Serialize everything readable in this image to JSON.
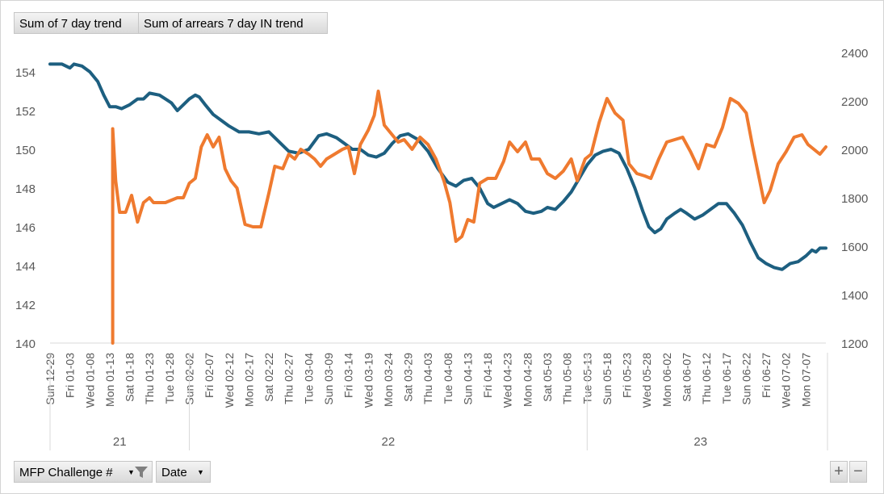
{
  "chart_data": {
    "type": "line",
    "title": "",
    "legend": [
      "Sum of 7 day trend",
      "Sum of arrears 7 day IN trend"
    ],
    "left_axis": {
      "min": 140,
      "max": 155,
      "ticks": [
        140,
        142,
        144,
        146,
        148,
        150,
        152,
        154
      ]
    },
    "right_axis": {
      "min": 1200,
      "max": 2400,
      "ticks": [
        1200,
        1400,
        1600,
        1800,
        2000,
        2200,
        2400
      ]
    },
    "x_labels": [
      "Sun 12-29",
      "Fri 01-03",
      "Wed 01-08",
      "Mon 01-13",
      "Sat 01-18",
      "Thu 01-23",
      "Tue 01-28",
      "Sun 02-02",
      "Fri 02-07",
      "Wed 02-12",
      "Mon 02-17",
      "Sat 02-22",
      "Thu 02-27",
      "Tue 03-04",
      "Sun 03-09",
      "Fri 03-14",
      "Wed 03-19",
      "Mon 03-24",
      "Sat 03-29",
      "Thu 04-03",
      "Tue 04-08",
      "Sun 04-13",
      "Fri 04-18",
      "Wed 04-23",
      "Mon 04-28",
      "Sat 05-03",
      "Thu 05-08",
      "Tue 05-13",
      "Sun 05-18",
      "Fri 05-23",
      "Wed 05-28",
      "Mon 06-02",
      "Sat 06-07",
      "Thu 06-12",
      "Tue 06-17",
      "Sun 06-22",
      "Fri 06-27",
      "Wed 07-02",
      "Mon 07-07"
    ],
    "groups": [
      {
        "label": "21",
        "start": 0,
        "end": 7
      },
      {
        "label": "22",
        "start": 7,
        "end": 27
      },
      {
        "label": "23",
        "start": 27,
        "end": 38.4
      }
    ],
    "series": [
      {
        "name": "Sum of 7 day trend",
        "axis": "left",
        "color": "#1d5f80",
        "points": [
          [
            0,
            154.4
          ],
          [
            0.6,
            154.4
          ],
          [
            0.8,
            154.3
          ],
          [
            1.0,
            154.2
          ],
          [
            1.2,
            154.4
          ],
          [
            1.6,
            154.3
          ],
          [
            2.0,
            154.0
          ],
          [
            2.4,
            153.5
          ],
          [
            2.7,
            152.8
          ],
          [
            3.0,
            152.2
          ],
          [
            3.3,
            152.2
          ],
          [
            3.6,
            152.1
          ],
          [
            4.0,
            152.3
          ],
          [
            4.4,
            152.6
          ],
          [
            4.7,
            152.6
          ],
          [
            5.0,
            152.9
          ],
          [
            5.5,
            152.8
          ],
          [
            5.8,
            152.6
          ],
          [
            6.1,
            152.4
          ],
          [
            6.4,
            152.0
          ],
          [
            6.7,
            152.3
          ],
          [
            7.0,
            152.6
          ],
          [
            7.3,
            152.8
          ],
          [
            7.5,
            152.7
          ],
          [
            7.8,
            152.3
          ],
          [
            8.2,
            151.8
          ],
          [
            8.6,
            151.5
          ],
          [
            9.0,
            151.2
          ],
          [
            9.5,
            150.9
          ],
          [
            10.0,
            150.9
          ],
          [
            10.5,
            150.8
          ],
          [
            11.0,
            150.9
          ],
          [
            11.5,
            150.4
          ],
          [
            12.0,
            149.9
          ],
          [
            12.5,
            149.8
          ],
          [
            13.0,
            150.0
          ],
          [
            13.5,
            150.7
          ],
          [
            13.9,
            150.8
          ],
          [
            14.4,
            150.6
          ],
          [
            14.8,
            150.3
          ],
          [
            15.2,
            150.0
          ],
          [
            15.6,
            150.0
          ],
          [
            16.0,
            149.7
          ],
          [
            16.4,
            149.6
          ],
          [
            16.8,
            149.8
          ],
          [
            17.2,
            150.3
          ],
          [
            17.6,
            150.7
          ],
          [
            18.0,
            150.8
          ],
          [
            18.5,
            150.5
          ],
          [
            19.0,
            149.9
          ],
          [
            19.5,
            149.0
          ],
          [
            20.0,
            148.3
          ],
          [
            20.4,
            148.1
          ],
          [
            20.8,
            148.4
          ],
          [
            21.2,
            148.5
          ],
          [
            21.6,
            148.0
          ],
          [
            22.0,
            147.2
          ],
          [
            22.3,
            147.0
          ],
          [
            22.7,
            147.2
          ],
          [
            23.1,
            147.4
          ],
          [
            23.5,
            147.2
          ],
          [
            23.9,
            146.8
          ],
          [
            24.3,
            146.7
          ],
          [
            24.7,
            146.8
          ],
          [
            25.0,
            147.0
          ],
          [
            25.4,
            146.9
          ],
          [
            25.8,
            147.3
          ],
          [
            26.2,
            147.8
          ],
          [
            26.6,
            148.5
          ],
          [
            27.0,
            149.2
          ],
          [
            27.4,
            149.7
          ],
          [
            27.8,
            149.9
          ],
          [
            28.2,
            150.0
          ],
          [
            28.6,
            149.8
          ],
          [
            29.0,
            149.0
          ],
          [
            29.4,
            148.0
          ],
          [
            29.8,
            146.8
          ],
          [
            30.1,
            146.0
          ],
          [
            30.4,
            145.7
          ],
          [
            30.7,
            145.9
          ],
          [
            31.0,
            146.4
          ],
          [
            31.4,
            146.7
          ],
          [
            31.7,
            146.9
          ],
          [
            32.0,
            146.7
          ],
          [
            32.4,
            146.4
          ],
          [
            32.8,
            146.6
          ],
          [
            33.2,
            146.9
          ],
          [
            33.6,
            147.2
          ],
          [
            34.0,
            147.2
          ],
          [
            34.4,
            146.7
          ],
          [
            34.8,
            146.1
          ],
          [
            35.2,
            145.2
          ],
          [
            35.6,
            144.4
          ],
          [
            36.0,
            144.1
          ],
          [
            36.4,
            143.9
          ],
          [
            36.8,
            143.8
          ],
          [
            37.2,
            144.1
          ],
          [
            37.6,
            144.2
          ],
          [
            38.0,
            144.5
          ],
          [
            38.3,
            144.8
          ],
          [
            38.5,
            144.7
          ],
          [
            38.7,
            144.9
          ],
          [
            39.0,
            144.9
          ]
        ]
      },
      {
        "name": "Sum of arrears 7 day IN trend",
        "axis": "right",
        "color": "#ef7a2f",
        "points": [
          [
            3.15,
            1200
          ],
          [
            3.15,
            2085
          ],
          [
            3.3,
            1870
          ],
          [
            3.5,
            1740
          ],
          [
            3.8,
            1740
          ],
          [
            4.1,
            1810
          ],
          [
            4.4,
            1700
          ],
          [
            4.7,
            1780
          ],
          [
            5.0,
            1800
          ],
          [
            5.2,
            1780
          ],
          [
            5.5,
            1780
          ],
          [
            5.8,
            1780
          ],
          [
            6.1,
            1790
          ],
          [
            6.4,
            1800
          ],
          [
            6.7,
            1800
          ],
          [
            7.0,
            1860
          ],
          [
            7.3,
            1880
          ],
          [
            7.6,
            2010
          ],
          [
            7.9,
            2060
          ],
          [
            8.2,
            2010
          ],
          [
            8.5,
            2050
          ],
          [
            8.8,
            1920
          ],
          [
            9.1,
            1870
          ],
          [
            9.4,
            1840
          ],
          [
            9.8,
            1690
          ],
          [
            10.2,
            1680
          ],
          [
            10.6,
            1680
          ],
          [
            11.0,
            1820
          ],
          [
            11.3,
            1930
          ],
          [
            11.7,
            1920
          ],
          [
            12.0,
            1980
          ],
          [
            12.3,
            1960
          ],
          [
            12.6,
            2000
          ],
          [
            13.0,
            1980
          ],
          [
            13.3,
            1960
          ],
          [
            13.6,
            1930
          ],
          [
            13.9,
            1960
          ],
          [
            14.3,
            1980
          ],
          [
            14.7,
            2000
          ],
          [
            15.0,
            2010
          ],
          [
            15.3,
            1900
          ],
          [
            15.6,
            2020
          ],
          [
            16.0,
            2080
          ],
          [
            16.3,
            2140
          ],
          [
            16.5,
            2240
          ],
          [
            16.8,
            2100
          ],
          [
            17.2,
            2060
          ],
          [
            17.5,
            2030
          ],
          [
            17.8,
            2040
          ],
          [
            18.2,
            2000
          ],
          [
            18.6,
            2050
          ],
          [
            19.0,
            2020
          ],
          [
            19.4,
            1960
          ],
          [
            19.8,
            1870
          ],
          [
            20.1,
            1780
          ],
          [
            20.4,
            1620
          ],
          [
            20.7,
            1640
          ],
          [
            21.0,
            1710
          ],
          [
            21.3,
            1700
          ],
          [
            21.6,
            1860
          ],
          [
            22.0,
            1880
          ],
          [
            22.4,
            1880
          ],
          [
            22.8,
            1950
          ],
          [
            23.1,
            2030
          ],
          [
            23.5,
            1990
          ],
          [
            23.9,
            2030
          ],
          [
            24.2,
            1960
          ],
          [
            24.6,
            1960
          ],
          [
            25.0,
            1900
          ],
          [
            25.4,
            1880
          ],
          [
            25.8,
            1910
          ],
          [
            26.2,
            1960
          ],
          [
            26.5,
            1870
          ],
          [
            26.9,
            1960
          ],
          [
            27.2,
            1980
          ],
          [
            27.6,
            2110
          ],
          [
            28.0,
            2210
          ],
          [
            28.4,
            2150
          ],
          [
            28.8,
            2120
          ],
          [
            29.1,
            1940
          ],
          [
            29.5,
            1900
          ],
          [
            29.9,
            1890
          ],
          [
            30.2,
            1880
          ],
          [
            30.6,
            1960
          ],
          [
            31.0,
            2030
          ],
          [
            31.4,
            2040
          ],
          [
            31.8,
            2050
          ],
          [
            32.2,
            1990
          ],
          [
            32.6,
            1920
          ],
          [
            33.0,
            2020
          ],
          [
            33.4,
            2010
          ],
          [
            33.8,
            2090
          ],
          [
            34.2,
            2210
          ],
          [
            34.6,
            2190
          ],
          [
            35.0,
            2150
          ],
          [
            35.3,
            2020
          ],
          [
            35.6,
            1900
          ],
          [
            35.9,
            1780
          ],
          [
            36.2,
            1830
          ],
          [
            36.6,
            1940
          ],
          [
            37.0,
            1990
          ],
          [
            37.4,
            2050
          ],
          [
            37.8,
            2060
          ],
          [
            38.1,
            2020
          ],
          [
            38.4,
            2000
          ],
          [
            38.7,
            1980
          ],
          [
            39.0,
            2010
          ]
        ]
      }
    ],
    "x_count": 39
  },
  "ui": {
    "legend_btn_1": "Sum of 7 day trend",
    "legend_btn_2": "Sum of arrears 7 day IN trend",
    "filter_btn_1": "MFP Challenge #",
    "filter_btn_2": "Date",
    "zoom_in": "+",
    "zoom_out": "−"
  }
}
